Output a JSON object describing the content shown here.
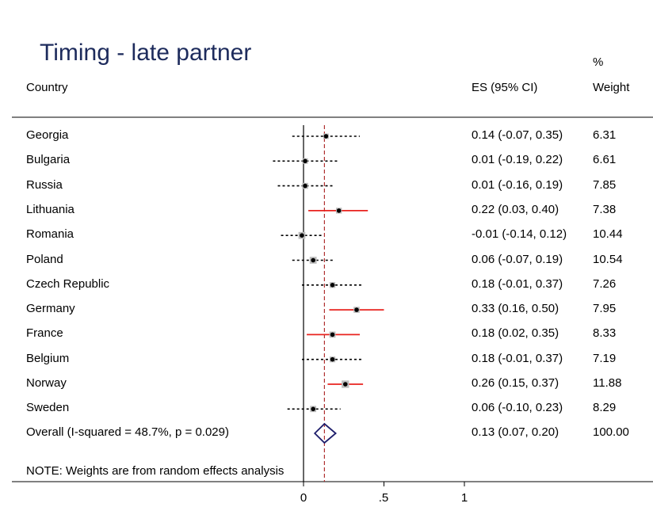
{
  "chart_data": {
    "type": "forest",
    "title": "Timing - late partner",
    "columns": {
      "label": "Country",
      "es": "ES (95% CI)",
      "weight_line1": "%",
      "weight_line2": "Weight"
    },
    "rows": [
      {
        "label": "Georgia",
        "es": 0.14,
        "lo": -0.07,
        "hi": 0.35,
        "es_text": "0.14 (-0.07, 0.35)",
        "weight": "6.31",
        "significant": false
      },
      {
        "label": "Bulgaria",
        "es": 0.01,
        "lo": -0.19,
        "hi": 0.22,
        "es_text": "0.01 (-0.19, 0.22)",
        "weight": "6.61",
        "significant": false
      },
      {
        "label": "Russia",
        "es": 0.01,
        "lo": -0.16,
        "hi": 0.19,
        "es_text": "0.01 (-0.16, 0.19)",
        "weight": "7.85",
        "significant": false
      },
      {
        "label": "Lithuania",
        "es": 0.22,
        "lo": 0.03,
        "hi": 0.4,
        "es_text": "0.22 (0.03, 0.40)",
        "weight": "7.38",
        "significant": true
      },
      {
        "label": "Romania",
        "es": -0.01,
        "lo": -0.14,
        "hi": 0.12,
        "es_text": "-0.01 (-0.14, 0.12)",
        "weight": "10.44",
        "significant": false
      },
      {
        "label": "Poland",
        "es": 0.06,
        "lo": -0.07,
        "hi": 0.19,
        "es_text": "0.06 (-0.07, 0.19)",
        "weight": "10.54",
        "significant": false
      },
      {
        "label": "Czech Republic",
        "es": 0.18,
        "lo": -0.01,
        "hi": 0.37,
        "es_text": "0.18 (-0.01, 0.37)",
        "weight": "7.26",
        "significant": false
      },
      {
        "label": "Germany",
        "es": 0.33,
        "lo": 0.16,
        "hi": 0.5,
        "es_text": "0.33 (0.16, 0.50)",
        "weight": "7.95",
        "significant": true
      },
      {
        "label": "France",
        "es": 0.18,
        "lo": 0.02,
        "hi": 0.35,
        "es_text": "0.18 (0.02, 0.35)",
        "weight": "8.33",
        "significant": true
      },
      {
        "label": "Belgium",
        "es": 0.18,
        "lo": -0.01,
        "hi": 0.37,
        "es_text": "0.18 (-0.01, 0.37)",
        "weight": "7.19",
        "significant": false
      },
      {
        "label": "Norway",
        "es": 0.26,
        "lo": 0.15,
        "hi": 0.37,
        "es_text": "0.26 (0.15, 0.37)",
        "weight": "11.88",
        "significant": true
      },
      {
        "label": "Sweden",
        "es": 0.06,
        "lo": -0.1,
        "hi": 0.23,
        "es_text": "0.06 (-0.10, 0.23)",
        "weight": "8.29",
        "significant": false
      }
    ],
    "overall": {
      "label": "Overall  (I-squared = 48.7%, p = 0.029)",
      "es": 0.13,
      "lo": 0.07,
      "hi": 0.2,
      "es_text": "0.13 (0.07, 0.20)",
      "weight": "100.00"
    },
    "note": "NOTE: Weights are from random effects analysis",
    "x_ticks": [
      {
        "value": 0,
        "label": "0"
      },
      {
        "value": 0.5,
        "label": ".5"
      },
      {
        "value": 1,
        "label": "1"
      }
    ],
    "xlim": [
      0,
      1
    ],
    "colors": {
      "significant_ci": "#e8231f",
      "nonsignificant_ci": "#000000",
      "overall_line": "#b03030",
      "diamond": "#1d1d6b",
      "title": "#1d2b5c",
      "weight_box": "#bdbdbd"
    }
  }
}
